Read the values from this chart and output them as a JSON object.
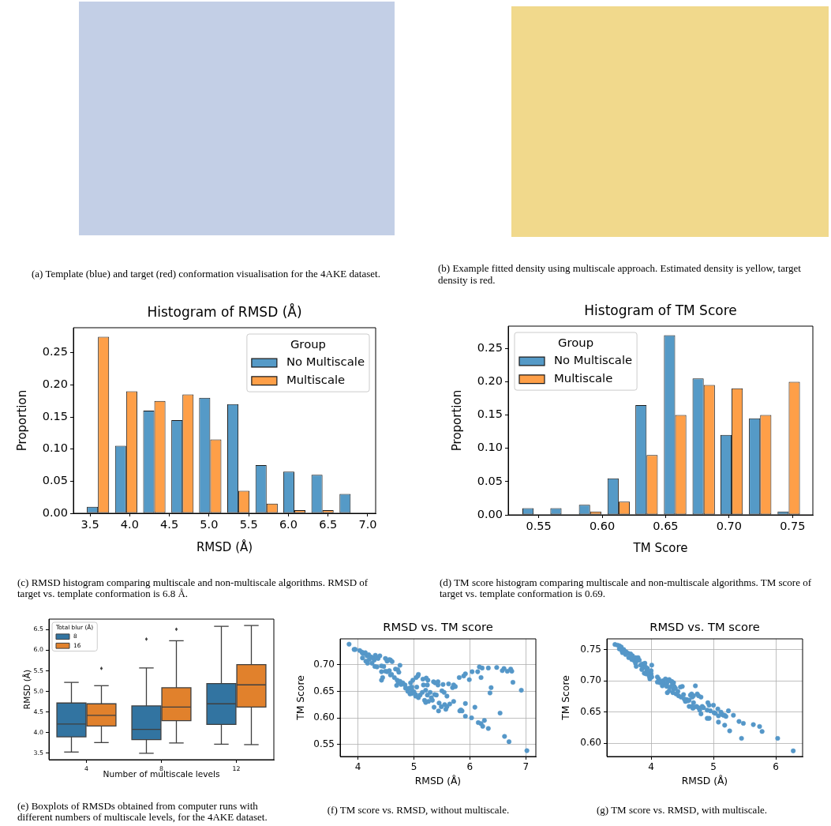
{
  "chart_data": [
    {
      "type": "other",
      "annotations": [
        "(a) Template (blue) and target (red) conformation visualisation for the 4AKE dataset."
      ]
    },
    {
      "type": "other",
      "annotations": [
        "(b) Example fitted density using multiscale approach. Estimated density is yellow, target density is red."
      ]
    },
    {
      "type": "histogram",
      "title": "Histogram of RMSD (Å)",
      "xlabel": "RMSD (Å)",
      "ylabel": "Proportion",
      "legend_title": "Group",
      "legend": "top right",
      "bins": [
        3.42,
        3.78,
        4.13,
        4.49,
        4.84,
        5.19,
        5.55,
        5.9,
        6.25,
        6.61,
        6.96
      ],
      "series": [
        {
          "name": "No Multiscale",
          "color": "#559ac7",
          "values": [
            0.01,
            0.105,
            0.16,
            0.145,
            0.18,
            0.17,
            0.075,
            0.065,
            0.06,
            0.03
          ]
        },
        {
          "name": "Multiscale",
          "color": "#fe9f48",
          "values": [
            0.275,
            0.19,
            0.175,
            0.185,
            0.115,
            0.035,
            0.015,
            0.005,
            0.005,
            0
          ]
        }
      ],
      "xlim": [
        3.29,
        7.1
      ],
      "xticks": [
        3.5,
        {
          "value": 4,
          "label": "4.0"
        },
        4.5,
        {
          "value": 5,
          "label": "5.0"
        },
        5.5,
        {
          "value": 6,
          "label": "6.0"
        },
        6.5,
        {
          "value": 7,
          "label": "7.0"
        }
      ],
      "ylim": [
        0,
        0.289
      ],
      "yticks": [
        {
          "value": 0,
          "label": "0.00"
        },
        0.05,
        {
          "value": 0.1,
          "label": "0.10"
        },
        0.15,
        {
          "value": 0.2,
          "label": "0.20"
        },
        0.25
      ],
      "annotations": [
        "(c) RMSD histogram comparing multiscale and non-multiscale algorithms. RMSD of target vs. template conformation is 6.8 Å."
      ]
    },
    {
      "type": "histogram",
      "title": "Histogram of TM Score",
      "xlabel": "TM Score",
      "ylabel": "Proportion",
      "legend_title": "Group",
      "legend": "top left",
      "bins": [
        0.535,
        0.557,
        0.579,
        0.602,
        0.624,
        0.646,
        0.669,
        0.691,
        0.713,
        0.736,
        0.758
      ],
      "series": [
        {
          "name": "No Multiscale",
          "color": "#559ac7",
          "values": [
            0.01,
            0.01,
            0.015,
            0.055,
            0.165,
            0.27,
            0.205,
            0.12,
            0.145,
            0.005
          ]
        },
        {
          "name": "Multiscale",
          "color": "#fe9f48",
          "values": [
            0,
            0,
            0.005,
            0.02,
            0.09,
            0.15,
            0.195,
            0.19,
            0.15,
            0.2
          ]
        }
      ],
      "xlim": [
        0.526,
        0.766
      ],
      "xticks": [
        0.55,
        {
          "value": 0.6,
          "label": "0.60"
        },
        0.65,
        {
          "value": 0.7,
          "label": "0.70"
        },
        0.75
      ],
      "ylim": [
        0,
        0.2835
      ],
      "yticks": [
        {
          "value": 0,
          "label": "0.00"
        },
        0.05,
        {
          "value": 0.1,
          "label": "0.10"
        },
        0.15,
        {
          "value": 0.2,
          "label": "0.20"
        },
        0.25
      ],
      "annotations": [
        "(d) TM score histogram comparing multiscale and non-multiscale algorithms. TM score of target vs. template conformation is 0.69."
      ]
    },
    {
      "type": "box",
      "categories": [
        "4",
        "8",
        "12"
      ],
      "xlabel": "Number of multiscale levels",
      "ylabel": "RMSD (Å)",
      "legend_title": "Total blur (Å)",
      "legend": "top left",
      "series": [
        {
          "name": "8",
          "color": "#3274a1",
          "boxes": [
            {
              "low": 3.53,
              "q1": 3.9,
              "median": 4.21,
              "q3": 4.72,
              "high": 5.22
            },
            {
              "low": 3.5,
              "q1": 3.83,
              "median": 4.08,
              "q3": 4.65,
              "high": 5.57,
              "outliers": [
                6.27
              ]
            },
            {
              "low": 3.72,
              "q1": 4.2,
              "median": 4.7,
              "q3": 5.19,
              "high": 6.58
            }
          ]
        },
        {
          "name": "16",
          "color": "#e1812c",
          "boxes": [
            {
              "low": 3.76,
              "q1": 4.16,
              "median": 4.42,
              "q3": 4.7,
              "high": 5.14,
              "outliers": [
                5.56
              ]
            },
            {
              "low": 3.75,
              "q1": 4.29,
              "median": 4.62,
              "q3": 5.09,
              "high": 6.23,
              "outliers": [
                6.51
              ]
            },
            {
              "low": 3.71,
              "q1": 4.62,
              "median": 5.16,
              "q3": 5.65,
              "high": 6.6
            }
          ]
        }
      ],
      "ylim": [
        3.345,
        6.755
      ],
      "yticks": [
        3.5,
        {
          "value": 4,
          "label": "4.0"
        },
        4.5,
        {
          "value": 5,
          "label": "5.0"
        },
        5.5,
        {
          "value": 6,
          "label": "6.0"
        },
        6.5
      ],
      "annotations": [
        "(e) Boxplots of RMSDs obtained from computer runs with different numbers of multiscale levels, for the 4AKE dataset."
      ]
    },
    {
      "type": "scatter",
      "title": "RMSD vs. TM score",
      "xlabel": "RMSD (Å)",
      "ylabel": "TM Score",
      "marker": "circle",
      "grid": true,
      "color": "#5597c8",
      "x": [
        3.84,
        3.93,
        3.95,
        4.03,
        4.07,
        4.08,
        4.11,
        4.13,
        4.08,
        4.16,
        4.19,
        4.23,
        4.14,
        4.17,
        4.2,
        4.27,
        4.31,
        4.33,
        4.36,
        4.39,
        4.29,
        4.25,
        4.3,
        4.34,
        4.42,
        4.49,
        4.52,
        4.56,
        4.58,
        4.61,
        4.46,
        4.42,
        4.49,
        4.52,
        4.42,
        4.44,
        4.56,
        4.58,
        4.6,
        4.65,
        4.67,
        4.71,
        4.75,
        4.73,
        4.7,
        4.72,
        4.75,
        4.69,
        4.77,
        4.8,
        4.84,
        4.85,
        4.89,
        4.92,
        4.96,
        4.97,
        4.89,
        4.93,
        4.96,
        5.0,
        5.03,
        5.05,
        5.07,
        5.04,
        5.08,
        4.98,
        4.94,
        5.03,
        5.08,
        5.11,
        5.15,
        5.17,
        5.16,
        5.22,
        5.25,
        5.24,
        5.21,
        5.24,
        5.19,
        5.21,
        5.26,
        5.29,
        5.31,
        5.33,
        5.35,
        5.38,
        5.37,
        5.4,
        5.36,
        5.43,
        5.43,
        5.45,
        5.44,
        5.49,
        5.5,
        5.52,
        5.54,
        5.55,
        5.57,
        5.59,
        5.62,
        5.59,
        5.64,
        5.69,
        5.71,
        5.74,
        5.71,
        5.81,
        5.82,
        5.84,
        5.86,
        5.89,
        5.92,
        5.92,
        5.92,
        5.99,
        6.03,
        6.04,
        6.09,
        6.14,
        6.15,
        6.17,
        6.2,
        6.2,
        6.23,
        6.22,
        6.26,
        6.33,
        6.33,
        6.36,
        6.38,
        6.48,
        6.54,
        6.58,
        6.61,
        6.62,
        6.67,
        6.7,
        6.73,
        6.75,
        6.77,
        6.92,
        7.02
      ],
      "values": [
        0.739,
        0.729,
        0.729,
        0.727,
        0.724,
        0.722,
        0.721,
        0.723,
        0.713,
        0.717,
        0.719,
        0.715,
        0.707,
        0.703,
        0.71,
        0.713,
        0.718,
        0.714,
        0.712,
        0.717,
        0.709,
        0.703,
        0.697,
        0.696,
        0.698,
        0.712,
        0.707,
        0.71,
        0.709,
        0.706,
        0.697,
        0.687,
        0.688,
        0.687,
        0.671,
        0.676,
        0.689,
        0.681,
        0.682,
        0.676,
        0.692,
        0.691,
        0.699,
        0.686,
        0.671,
        0.666,
        0.669,
        0.661,
        0.663,
        0.666,
        0.662,
        0.656,
        0.655,
        0.656,
        0.658,
        0.651,
        0.65,
        0.645,
        0.646,
        0.649,
        0.644,
        0.658,
        0.679,
        0.676,
        0.682,
        0.671,
        0.666,
        0.641,
        0.638,
        0.643,
        0.648,
        0.662,
        0.673,
        0.675,
        0.671,
        0.662,
        0.652,
        0.643,
        0.633,
        0.629,
        0.631,
        0.648,
        0.638,
        0.633,
        0.668,
        0.666,
        0.644,
        0.643,
        0.62,
        0.662,
        0.668,
        0.628,
        0.613,
        0.621,
        0.651,
        0.663,
        0.648,
        0.625,
        0.616,
        0.621,
        0.664,
        0.641,
        0.626,
        0.657,
        0.662,
        0.659,
        0.631,
        0.676,
        0.613,
        0.615,
        0.613,
        0.679,
        0.683,
        0.627,
        0.603,
        0.672,
        0.6,
        0.687,
        0.62,
        0.687,
        0.591,
        0.696,
        0.676,
        0.589,
        0.584,
        0.694,
        0.595,
        0.694,
        0.58,
        0.647,
        0.657,
        0.695,
        0.609,
        0.689,
        0.693,
        0.565,
        0.688,
        0.555,
        0.692,
        0.688,
        0.667,
        0.652,
        0.538
      ],
      "xlim": [
        3.68,
        7.18
      ],
      "xticks": [
        4,
        5,
        6,
        7
      ],
      "ylim": [
        0.527,
        0.749
      ],
      "yticks": [
        0.55,
        {
          "value": 0.6,
          "label": "0.60"
        },
        0.65,
        {
          "value": 0.7,
          "label": "0.70"
        }
      ],
      "annotations": [
        "(f) TM score vs. RMSD, without multiscale."
      ]
    },
    {
      "type": "scatter",
      "title": "RMSD vs. TM score",
      "xlabel": "RMSD (Å)",
      "ylabel": "TM Score",
      "marker": "circle",
      "grid": true,
      "color": "#5597c8",
      "x": [
        3.42,
        3.46,
        3.49,
        3.52,
        3.49,
        3.53,
        3.56,
        3.58,
        3.6,
        3.54,
        3.63,
        3.59,
        3.67,
        3.64,
        3.7,
        3.69,
        3.75,
        3.73,
        3.77,
        3.79,
        3.81,
        3.75,
        3.76,
        3.83,
        3.86,
        3.9,
        3.87,
        3.85,
        3.91,
        3.93,
        3.94,
        4.01,
        3.89,
        3.92,
        3.96,
        3.97,
        4.0,
        4.01,
        3.98,
        4.0,
        4.1,
        4.12,
        4.1,
        4.14,
        4.15,
        4.19,
        4.21,
        4.23,
        4.18,
        4.25,
        4.27,
        4.25,
        4.29,
        4.33,
        4.26,
        4.29,
        4.3,
        4.34,
        4.36,
        4.36,
        4.37,
        4.39,
        4.35,
        4.4,
        4.43,
        4.47,
        4.5,
        4.44,
        4.48,
        4.52,
        4.53,
        4.57,
        4.59,
        4.55,
        4.61,
        4.63,
        4.65,
        4.66,
        4.68,
        4.71,
        4.74,
        4.76,
        4.8,
        4.68,
        4.61,
        4.65,
        4.69,
        4.73,
        4.76,
        4.67,
        4.78,
        4.8,
        4.82,
        4.84,
        4.9,
        4.91,
        4.93,
        4.9,
        4.93,
        4.95,
        5.0,
        5.01,
        5.03,
        5.07,
        5.08,
        5.08,
        5.12,
        5.14,
        5.16,
        5.18,
        5.2,
        5.18,
        5.24,
        5.26,
        5.32,
        5.41,
        5.45,
        5.48,
        5.64,
        5.74,
        5.78,
        6.03,
        6.28
      ],
      "values": [
        0.758,
        0.757,
        0.756,
        0.754,
        0.751,
        0.748,
        0.75,
        0.747,
        0.746,
        0.745,
        0.744,
        0.742,
        0.743,
        0.737,
        0.74,
        0.734,
        0.737,
        0.732,
        0.732,
        0.737,
        0.733,
        0.728,
        0.723,
        0.725,
        0.727,
        0.728,
        0.721,
        0.718,
        0.722,
        0.716,
        0.72,
        0.725,
        0.712,
        0.711,
        0.713,
        0.707,
        0.711,
        0.706,
        0.703,
        0.716,
        0.706,
        0.703,
        0.698,
        0.697,
        0.699,
        0.7,
        0.696,
        0.703,
        0.692,
        0.695,
        0.699,
        0.691,
        0.702,
        0.699,
        0.681,
        0.684,
        0.69,
        0.694,
        0.697,
        0.687,
        0.691,
        0.688,
        0.681,
        0.679,
        0.683,
        0.69,
        0.691,
        0.676,
        0.674,
        0.678,
        0.671,
        0.67,
        0.668,
        0.667,
        0.669,
        0.677,
        0.679,
        0.674,
        0.676,
        0.692,
        0.679,
        0.676,
        0.674,
        0.665,
        0.659,
        0.659,
        0.658,
        0.659,
        0.657,
        0.656,
        0.653,
        0.647,
        0.659,
        0.657,
        0.653,
        0.665,
        0.661,
        0.64,
        0.64,
        0.652,
        0.661,
        0.649,
        0.648,
        0.655,
        0.634,
        0.644,
        0.65,
        0.646,
        0.645,
        0.645,
        0.643,
        0.629,
        0.652,
        0.62,
        0.645,
        0.635,
        0.608,
        0.632,
        0.63,
        0.627,
        0.619,
        0.608,
        0.588
      ],
      "xlim": [
        3.29,
        6.43
      ],
      "xticks": [
        4,
        5,
        6
      ],
      "ylim": [
        0.579,
        0.767
      ],
      "yticks": [
        {
          "value": 0.6,
          "label": "0.60"
        },
        0.65,
        {
          "value": 0.7,
          "label": "0.70"
        },
        0.75
      ],
      "annotations": [
        "(g) TM score vs. RMSD, with multiscale."
      ]
    }
  ]
}
